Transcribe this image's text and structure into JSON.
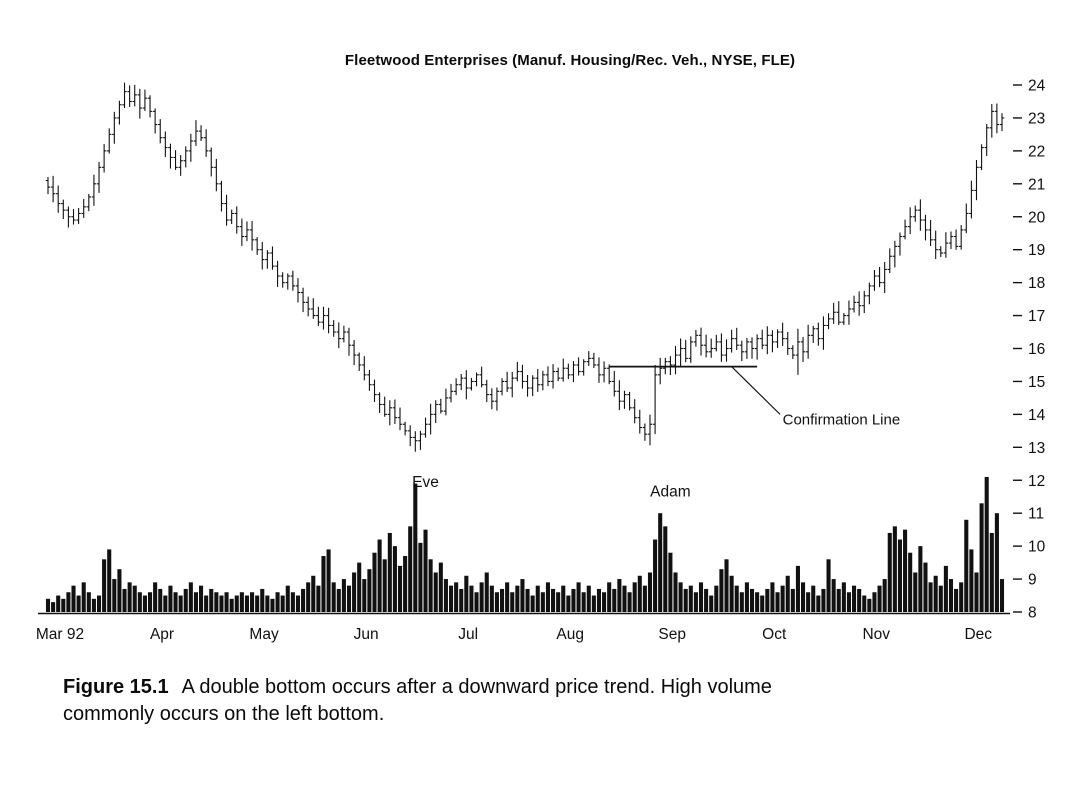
{
  "title": "Fleetwood Enterprises (Manuf. Housing/Rec. Veh., NYSE, FLE)",
  "caption": {
    "label": "Figure 15.1",
    "lines": [
      "A double bottom occurs after a downward price trend. High volume",
      "commonly occurs on the left bottom."
    ]
  },
  "chart_data": {
    "type": "ohlc-with-volume",
    "title": "Fleetwood Enterprises (Manuf. Housing/Rec. Veh., NYSE, FLE)",
    "ink_color": "#111111",
    "x_axis": {
      "categories": [
        "Mar 92",
        "Apr",
        "May",
        "Jun",
        "Jul",
        "Aug",
        "Sep",
        "Oct",
        "Nov",
        "Dec"
      ],
      "month_start_indices": [
        0,
        20,
        40,
        60,
        80,
        100,
        120,
        140,
        160,
        180
      ]
    },
    "price_axis": {
      "side": "right",
      "min": 8,
      "max": 24,
      "ticks": [
        8,
        9,
        10,
        11,
        12,
        13,
        14,
        15,
        16,
        17,
        18,
        19,
        20,
        21,
        22,
        23,
        24
      ]
    },
    "closes": [
      20.9,
      20.7,
      20.4,
      20.2,
      20.0,
      19.9,
      20.1,
      20.3,
      20.6,
      21.0,
      21.5,
      22.0,
      22.5,
      23.0,
      23.4,
      23.8,
      23.5,
      23.7,
      23.3,
      23.6,
      23.2,
      22.8,
      22.4,
      22.1,
      21.8,
      21.5,
      21.7,
      22.0,
      22.3,
      22.6,
      22.4,
      22.0,
      21.5,
      21.0,
      20.4,
      19.9,
      20.1,
      19.7,
      19.4,
      19.6,
      19.3,
      19.0,
      18.7,
      18.9,
      18.5,
      18.2,
      18.0,
      18.2,
      17.9,
      17.7,
      17.4,
      17.2,
      17.0,
      16.8,
      17.0,
      16.7,
      16.5,
      16.3,
      16.5,
      16.1,
      15.8,
      15.5,
      15.2,
      14.9,
      14.6,
      14.3,
      14.0,
      14.2,
      13.9,
      13.7,
      13.5,
      13.3,
      13.2,
      13.4,
      13.7,
      14.0,
      14.3,
      14.1,
      14.5,
      14.7,
      14.9,
      15.1,
      14.8,
      15.0,
      15.2,
      14.9,
      14.6,
      14.4,
      14.7,
      15.0,
      14.8,
      15.1,
      15.3,
      15.0,
      14.8,
      15.1,
      14.9,
      15.2,
      15.0,
      15.3,
      15.1,
      15.4,
      15.2,
      15.5,
      15.3,
      15.6,
      15.7,
      15.5,
      15.2,
      15.4,
      15.0,
      14.7,
      14.4,
      14.6,
      14.2,
      13.9,
      13.6,
      13.4,
      13.7,
      15.2,
      15.4,
      15.6,
      15.5,
      15.8,
      16.0,
      15.7,
      16.2,
      16.4,
      16.1,
      15.9,
      16.0,
      16.2,
      15.8,
      16.0,
      16.3,
      16.1,
      15.9,
      16.2,
      16.0,
      16.3,
      16.1,
      16.4,
      16.2,
      16.5,
      16.3,
      16.0,
      15.8,
      16.2,
      15.9,
      16.4,
      16.6,
      16.3,
      16.7,
      16.9,
      17.1,
      16.8,
      17.0,
      17.2,
      17.4,
      17.3,
      17.6,
      17.9,
      18.2,
      18.0,
      18.4,
      18.8,
      19.1,
      19.4,
      19.7,
      20.0,
      20.2,
      19.9,
      19.6,
      19.3,
      19.0,
      18.9,
      19.2,
      19.4,
      19.1,
      19.6,
      20.1,
      20.8,
      21.5,
      22.1,
      22.7,
      23.2,
      22.8,
      23.0
    ],
    "volume_rel": [
      0.4,
      0.3,
      0.5,
      0.4,
      0.6,
      0.8,
      0.5,
      0.9,
      0.6,
      0.4,
      0.5,
      1.6,
      1.9,
      1.0,
      1.3,
      0.7,
      0.9,
      0.8,
      0.6,
      0.5,
      0.6,
      0.9,
      0.7,
      0.5,
      0.8,
      0.6,
      0.5,
      0.7,
      0.9,
      0.6,
      0.8,
      0.5,
      0.7,
      0.6,
      0.5,
      0.6,
      0.4,
      0.5,
      0.6,
      0.5,
      0.6,
      0.5,
      0.7,
      0.5,
      0.4,
      0.6,
      0.5,
      0.8,
      0.6,
      0.5,
      0.7,
      0.9,
      1.1,
      0.8,
      1.7,
      1.9,
      0.9,
      0.7,
      1.0,
      0.8,
      1.2,
      1.5,
      1.0,
      1.3,
      1.8,
      2.2,
      1.6,
      2.4,
      2.0,
      1.4,
      1.7,
      2.6,
      3.9,
      2.1,
      2.5,
      1.6,
      1.2,
      1.5,
      1.0,
      0.8,
      0.9,
      0.7,
      1.1,
      0.8,
      0.6,
      0.9,
      1.2,
      0.8,
      0.6,
      0.7,
      0.9,
      0.6,
      0.8,
      1.0,
      0.7,
      0.5,
      0.8,
      0.6,
      0.9,
      0.7,
      0.6,
      0.8,
      0.5,
      0.7,
      0.9,
      0.6,
      0.8,
      0.5,
      0.7,
      0.6,
      0.9,
      0.7,
      1.0,
      0.8,
      0.6,
      0.9,
      1.1,
      0.8,
      1.2,
      2.2,
      3.0,
      2.6,
      1.8,
      1.2,
      0.9,
      0.7,
      0.8,
      0.6,
      0.9,
      0.7,
      0.5,
      0.8,
      1.3,
      1.6,
      1.1,
      0.8,
      0.6,
      0.9,
      0.7,
      0.6,
      0.5,
      0.7,
      0.9,
      0.6,
      0.8,
      1.1,
      0.7,
      1.4,
      0.9,
      0.6,
      0.8,
      0.5,
      0.7,
      1.6,
      1.0,
      0.7,
      0.9,
      0.6,
      0.8,
      0.7,
      0.5,
      0.4,
      0.6,
      0.8,
      1.0,
      2.4,
      2.6,
      2.2,
      2.5,
      1.8,
      1.2,
      2.0,
      1.5,
      0.9,
      1.1,
      0.8,
      1.4,
      1.0,
      0.7,
      0.9,
      2.8,
      1.9,
      1.2,
      3.3,
      4.1,
      2.4,
      3.0,
      1.0
    ],
    "volume_unit_note": "bar height above the price-8 baseline, in price-axis units",
    "typical_daily_range": 0.55,
    "special_bars": [
      {
        "index": 119,
        "low": 13.4,
        "high": 15.5
      },
      {
        "index": 147,
        "low": 15.2,
        "high": 16.6
      }
    ],
    "annotations": {
      "eve": {
        "text": "Eve",
        "day_index": 74,
        "price": 11.8
      },
      "adam": {
        "text": "Adam",
        "day_index": 122,
        "price": 11.5
      },
      "confirmation": {
        "text": "Confirmation Line",
        "line_price": 15.45,
        "line_start_index": 110,
        "line_end_index": 139,
        "leader_from": [
          134,
          15.45
        ],
        "leader_to": [
          143.5,
          14.0
        ],
        "label_index": 144,
        "label_price": 13.7
      }
    }
  }
}
